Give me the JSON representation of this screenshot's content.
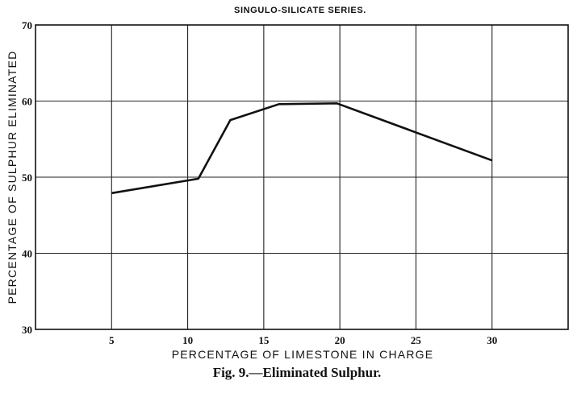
{
  "chart_data": {
    "type": "line",
    "title": "SINGULO-SILICATE SERIES.",
    "xlabel": "PERCENTAGE OF LIMESTONE IN CHARGE",
    "ylabel": "PERCENTAGE OF SULPHUR ELIMINATED",
    "caption": "Fig. 9.—Eliminated Sulphur.",
    "xlim": [
      0,
      35
    ],
    "ylim": [
      30,
      70
    ],
    "x_ticks": [
      5,
      10,
      15,
      20,
      25,
      30
    ],
    "x_tick_labels": [
      "5",
      "10",
      "15",
      "20",
      "25",
      "30"
    ],
    "y_ticks": [
      30,
      40,
      50,
      60,
      70
    ],
    "y_tick_labels": [
      "30",
      "40",
      "50",
      "60",
      "70"
    ],
    "grid": true,
    "series": [
      {
        "x": [
          5,
          10.7,
          12.8,
          16,
          19.8,
          30
        ],
        "values": [
          47.9,
          49.8,
          57.5,
          59.6,
          59.7,
          52.2
        ]
      }
    ]
  }
}
